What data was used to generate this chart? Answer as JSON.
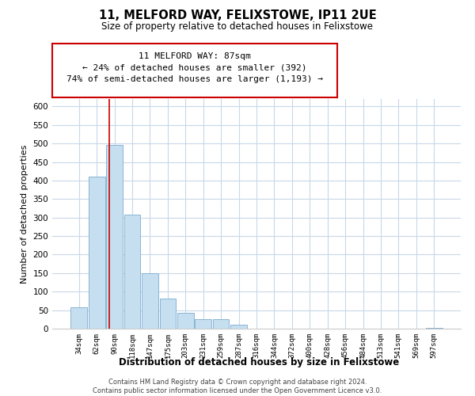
{
  "title": "11, MELFORD WAY, FELIXSTOWE, IP11 2UE",
  "subtitle": "Size of property relative to detached houses in Felixstowe",
  "xlabel": "Distribution of detached houses by size in Felixstowe",
  "ylabel": "Number of detached properties",
  "bar_labels": [
    "34sqm",
    "62sqm",
    "90sqm",
    "118sqm",
    "147sqm",
    "175sqm",
    "203sqm",
    "231sqm",
    "259sqm",
    "287sqm",
    "316sqm",
    "344sqm",
    "372sqm",
    "400sqm",
    "428sqm",
    "456sqm",
    "484sqm",
    "513sqm",
    "541sqm",
    "569sqm",
    "597sqm"
  ],
  "bar_values": [
    57,
    410,
    495,
    307,
    150,
    82,
    43,
    25,
    25,
    10,
    0,
    0,
    0,
    0,
    0,
    0,
    0,
    0,
    0,
    0,
    3
  ],
  "bar_color": "#c5dff0",
  "bar_edge_color": "#8ab4d4",
  "vline_x_idx": 1.72,
  "annotation_box_text": "11 MELFORD WAY: 87sqm\n← 24% of detached houses are smaller (392)\n74% of semi-detached houses are larger (1,193) →",
  "vline_color": "#cc0000",
  "ylim": [
    0,
    620
  ],
  "yticks": [
    0,
    50,
    100,
    150,
    200,
    250,
    300,
    350,
    400,
    450,
    500,
    550,
    600
  ],
  "footer": "Contains HM Land Registry data © Crown copyright and database right 2024.\nContains public sector information licensed under the Open Government Licence v3.0.",
  "background_color": "#ffffff",
  "grid_color": "#c8d8e8"
}
